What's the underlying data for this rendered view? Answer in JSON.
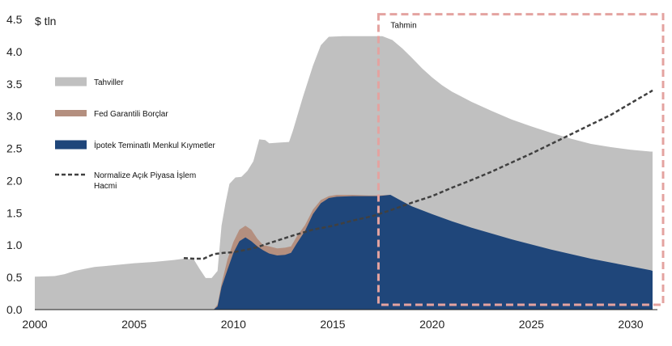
{
  "chart_data": {
    "type": "area",
    "unit_label": "$ tln",
    "ylim": [
      0,
      4.5
    ],
    "xlim": [
      2000,
      2031.1
    ],
    "x_ticks": [
      2000,
      2005,
      2010,
      2015,
      2020,
      2025,
      2030
    ],
    "y_ticks": [
      "0.0",
      "0.5",
      "1.0",
      "1.5",
      "2.0",
      "2.5",
      "3.0",
      "3.5",
      "4.0",
      "4.5"
    ],
    "forecast": {
      "label": "Tahmin",
      "x_start": 2017.3,
      "x_end": 2031.1,
      "y_top": 4.58,
      "color": "#e4a3a0"
    },
    "colors": {
      "treasuries": "#c0c0c0",
      "agency": "#b48f7f",
      "mbs": "#1f467a",
      "normalized": "#404040"
    },
    "legend": [
      {
        "key": "treasuries",
        "label": "Tahviller"
      },
      {
        "key": "agency",
        "label": "Fed Garantili Borçlar"
      },
      {
        "key": "mbs",
        "label": "İpotek Teminatlı Menkul Kıymetler"
      },
      {
        "key": "normalized",
        "label": [
          "Normalize Açık Piyasa İşlem",
          "Hacmi"
        ]
      }
    ],
    "series": [
      {
        "key": "total",
        "name": "Tahviller",
        "points": [
          [
            2000,
            0.51
          ],
          [
            2001,
            0.52
          ],
          [
            2001.5,
            0.55
          ],
          [
            2002,
            0.6
          ],
          [
            2003,
            0.66
          ],
          [
            2004,
            0.69
          ],
          [
            2005,
            0.72
          ],
          [
            2006,
            0.74
          ],
          [
            2007,
            0.77
          ],
          [
            2007.5,
            0.79
          ],
          [
            2008,
            0.78
          ],
          [
            2008.3,
            0.63
          ],
          [
            2008.6,
            0.49
          ],
          [
            2008.9,
            0.49
          ],
          [
            2009.2,
            0.6
          ],
          [
            2009.4,
            1.3
          ],
          [
            2009.6,
            1.65
          ],
          [
            2009.8,
            1.95
          ],
          [
            2010.1,
            2.05
          ],
          [
            2010.4,
            2.06
          ],
          [
            2010.7,
            2.15
          ],
          [
            2011.0,
            2.3
          ],
          [
            2011.3,
            2.64
          ],
          [
            2011.6,
            2.63
          ],
          [
            2011.8,
            2.58
          ],
          [
            2012.3,
            2.59
          ],
          [
            2012.8,
            2.6
          ],
          [
            2013.0,
            2.78
          ],
          [
            2013.5,
            3.3
          ],
          [
            2014.0,
            3.78
          ],
          [
            2014.4,
            4.1
          ],
          [
            2014.8,
            4.23
          ],
          [
            2015.5,
            4.24
          ],
          [
            2016.5,
            4.24
          ],
          [
            2017.5,
            4.24
          ],
          [
            2018,
            4.18
          ],
          [
            2018.5,
            4.05
          ],
          [
            2019,
            3.9
          ],
          [
            2019.5,
            3.74
          ],
          [
            2020,
            3.6
          ],
          [
            2020.5,
            3.48
          ],
          [
            2021,
            3.38
          ],
          [
            2021.5,
            3.3
          ],
          [
            2022,
            3.22
          ],
          [
            2023,
            3.08
          ],
          [
            2024,
            2.95
          ],
          [
            2025,
            2.84
          ],
          [
            2026,
            2.74
          ],
          [
            2027,
            2.65
          ],
          [
            2028,
            2.57
          ],
          [
            2029,
            2.52
          ],
          [
            2030,
            2.48
          ],
          [
            2031,
            2.45
          ],
          [
            2031.1,
            2.45
          ]
        ]
      },
      {
        "key": "agency",
        "name": "Fed Garantili Borçlar",
        "points": [
          [
            2009.0,
            0.0
          ],
          [
            2009.2,
            0.08
          ],
          [
            2009.4,
            0.4
          ],
          [
            2009.7,
            0.78
          ],
          [
            2010.0,
            1.05
          ],
          [
            2010.3,
            1.24
          ],
          [
            2010.6,
            1.3
          ],
          [
            2010.9,
            1.24
          ],
          [
            2011.2,
            1.1
          ],
          [
            2011.5,
            1.0
          ],
          [
            2011.8,
            0.98
          ],
          [
            2012.2,
            0.95
          ],
          [
            2012.6,
            0.96
          ],
          [
            2012.9,
            0.98
          ],
          [
            2013.2,
            1.14
          ],
          [
            2013.6,
            1.31
          ],
          [
            2014.0,
            1.55
          ],
          [
            2014.4,
            1.7
          ],
          [
            2014.8,
            1.76
          ],
          [
            2015.2,
            1.78
          ],
          [
            2016.0,
            1.78
          ],
          [
            2016.8,
            1.77
          ],
          [
            2017.3,
            1.77
          ],
          [
            2017.9,
            1.78
          ]
        ]
      },
      {
        "key": "mbs",
        "name": "İpotek Teminatlı Menkul Kıymetler",
        "points": [
          [
            2009.0,
            0.0
          ],
          [
            2009.2,
            0.05
          ],
          [
            2009.4,
            0.35
          ],
          [
            2009.7,
            0.62
          ],
          [
            2010.0,
            0.88
          ],
          [
            2010.3,
            1.06
          ],
          [
            2010.6,
            1.12
          ],
          [
            2010.9,
            1.06
          ],
          [
            2011.2,
            0.98
          ],
          [
            2011.5,
            0.92
          ],
          [
            2011.8,
            0.87
          ],
          [
            2012.2,
            0.84
          ],
          [
            2012.6,
            0.85
          ],
          [
            2012.9,
            0.88
          ],
          [
            2013.2,
            1.03
          ],
          [
            2013.6,
            1.22
          ],
          [
            2014.0,
            1.48
          ],
          [
            2014.4,
            1.65
          ],
          [
            2014.8,
            1.73
          ],
          [
            2015.2,
            1.75
          ],
          [
            2016.0,
            1.76
          ],
          [
            2016.8,
            1.76
          ],
          [
            2017.3,
            1.76
          ],
          [
            2017.9,
            1.78
          ],
          [
            2018.5,
            1.68
          ],
          [
            2019,
            1.6
          ],
          [
            2020,
            1.48
          ],
          [
            2021,
            1.37
          ],
          [
            2022,
            1.27
          ],
          [
            2023,
            1.18
          ],
          [
            2024,
            1.09
          ],
          [
            2025,
            1.01
          ],
          [
            2026,
            0.93
          ],
          [
            2027,
            0.86
          ],
          [
            2028,
            0.79
          ],
          [
            2029,
            0.73
          ],
          [
            2030,
            0.67
          ],
          [
            2031,
            0.61
          ],
          [
            2031.1,
            0.6
          ]
        ]
      },
      {
        "key": "normalized",
        "name": "Normalize Açık Piyasa İşlem Hacmi",
        "points": [
          [
            2007.5,
            0.8
          ],
          [
            2008.0,
            0.79
          ],
          [
            2008.5,
            0.79
          ],
          [
            2009.0,
            0.86
          ],
          [
            2009.5,
            0.88
          ],
          [
            2010,
            0.89
          ],
          [
            2011,
            0.95
          ],
          [
            2012,
            1.05
          ],
          [
            2013,
            1.15
          ],
          [
            2014,
            1.24
          ],
          [
            2015,
            1.3
          ],
          [
            2016,
            1.38
          ],
          [
            2017,
            1.45
          ],
          [
            2018,
            1.55
          ],
          [
            2019,
            1.66
          ],
          [
            2020,
            1.76
          ],
          [
            2021,
            1.89
          ],
          [
            2022,
            2.01
          ],
          [
            2023,
            2.14
          ],
          [
            2024,
            2.28
          ],
          [
            2025,
            2.42
          ],
          [
            2026,
            2.57
          ],
          [
            2027,
            2.72
          ],
          [
            2028,
            2.87
          ],
          [
            2029,
            3.02
          ],
          [
            2030,
            3.2
          ],
          [
            2031,
            3.38
          ],
          [
            2031.1,
            3.4
          ]
        ]
      }
    ]
  }
}
